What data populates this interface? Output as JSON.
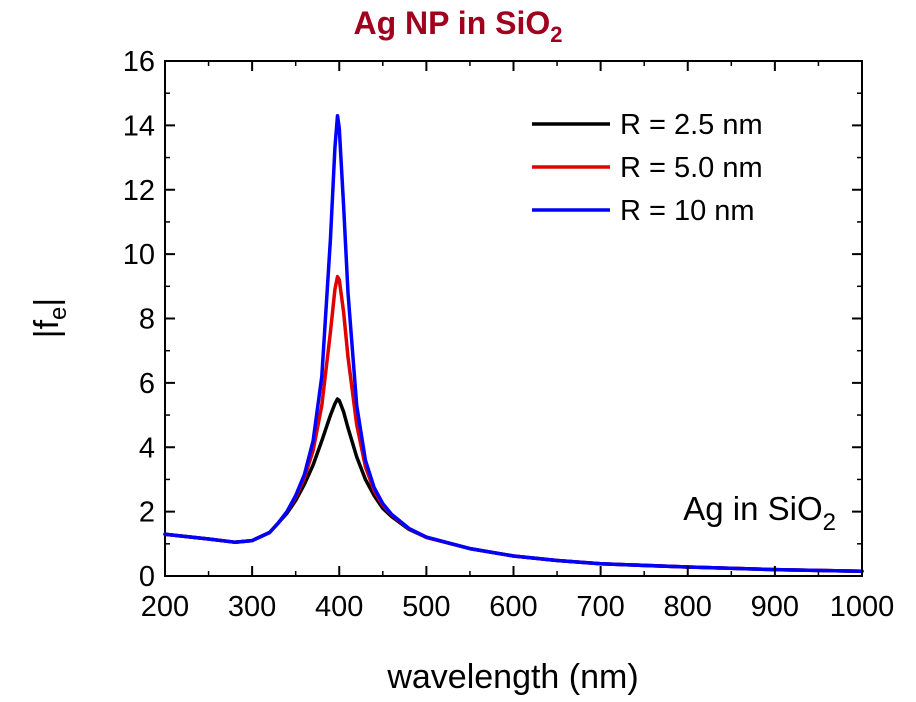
{
  "chart_data": {
    "type": "line",
    "title": "Ag NP in SiO",
    "title_subscript": "2",
    "xlabel": "wavelength (nm)",
    "ylabel": "|f",
    "ylabel_subscript": "e",
    "ylabel_suffix": "|",
    "xlim": [
      200,
      1000
    ],
    "ylim": [
      0,
      16
    ],
    "x_ticks": [
      200,
      300,
      400,
      500,
      600,
      700,
      800,
      900,
      1000
    ],
    "y_ticks": [
      0,
      2,
      4,
      6,
      8,
      10,
      12,
      14,
      16
    ],
    "grid": false,
    "legend_position": "top-right",
    "annotation": {
      "text": "Ag in SiO",
      "subscript": "2",
      "position": "lower-right"
    },
    "x": [
      200,
      250,
      280,
      300,
      320,
      330,
      340,
      350,
      360,
      370,
      380,
      390,
      395,
      398,
      400,
      405,
      410,
      420,
      430,
      440,
      450,
      460,
      480,
      500,
      550,
      600,
      650,
      700,
      800,
      900,
      1000
    ],
    "series": [
      {
        "name": "R = 2.5 nm",
        "color": "#000000",
        "values": [
          1.3,
          1.15,
          1.05,
          1.1,
          1.35,
          1.65,
          1.95,
          2.35,
          2.85,
          3.45,
          4.2,
          5.0,
          5.35,
          5.5,
          5.45,
          5.1,
          4.6,
          3.7,
          3.0,
          2.5,
          2.1,
          1.85,
          1.45,
          1.2,
          0.85,
          0.62,
          0.48,
          0.38,
          0.28,
          0.2,
          0.15
        ]
      },
      {
        "name": "R = 5.0 nm",
        "color": "#e00000",
        "values": [
          1.3,
          1.15,
          1.05,
          1.1,
          1.35,
          1.65,
          2.0,
          2.45,
          3.05,
          3.9,
          5.3,
          7.6,
          8.9,
          9.3,
          9.2,
          8.2,
          6.8,
          4.7,
          3.4,
          2.65,
          2.2,
          1.9,
          1.47,
          1.2,
          0.85,
          0.62,
          0.48,
          0.38,
          0.28,
          0.2,
          0.15
        ]
      },
      {
        "name": "R = 10 nm",
        "color": "#0000ff",
        "values": [
          1.3,
          1.15,
          1.05,
          1.1,
          1.35,
          1.65,
          2.0,
          2.5,
          3.15,
          4.2,
          6.2,
          10.5,
          13.3,
          14.3,
          13.9,
          11.5,
          8.8,
          5.3,
          3.6,
          2.75,
          2.25,
          1.92,
          1.48,
          1.21,
          0.85,
          0.62,
          0.48,
          0.38,
          0.28,
          0.2,
          0.15
        ]
      }
    ]
  }
}
